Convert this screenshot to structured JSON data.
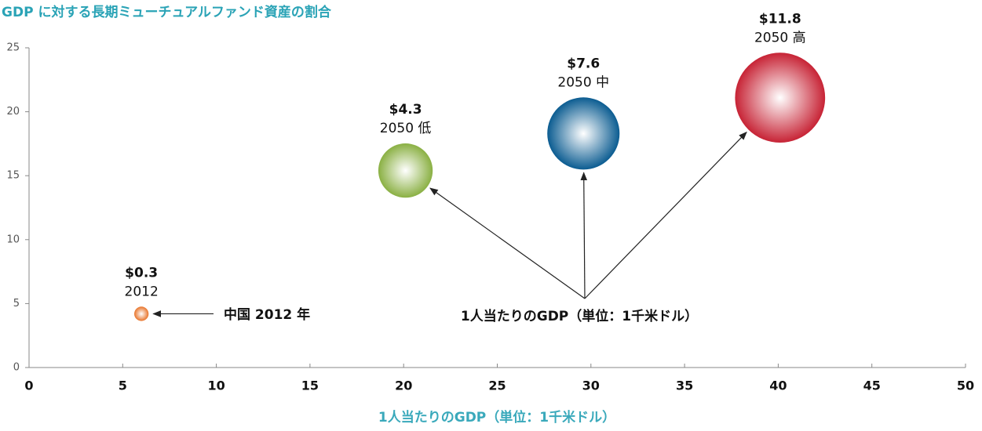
{
  "chart_data": {
    "type": "bubble",
    "title": "GDP に対する長期ミューチュアルファンド資産の割合",
    "x_label": "1人当たりのGDP（単位：1千米ドル）",
    "annotations": [
      "中国 2012 年",
      "1人当たりのGDP（単位：1千米ドル）"
    ],
    "x": [
      6.0,
      20.1,
      29.6,
      40.1
    ],
    "y": [
      4.2,
      15.4,
      18.3,
      21.1
    ],
    "sizes": [
      0.3,
      4.3,
      7.6,
      11.8
    ],
    "value_labels": [
      "$0.3",
      "$4.3",
      "$7.6",
      "$11.8"
    ],
    "labels": [
      "2012",
      "2050 低",
      "2050 中",
      "2050 高"
    ],
    "colors": [
      "#e8742a",
      "#8ab043",
      "#0b5c91",
      "#c72335"
    ],
    "xlim": [
      0,
      50
    ],
    "xticks": [
      0,
      5,
      10,
      15,
      20,
      25,
      30,
      35,
      40,
      45,
      50
    ],
    "ylim": [
      0,
      25
    ],
    "yticks": [
      0,
      5,
      10,
      15,
      20,
      25
    ]
  }
}
